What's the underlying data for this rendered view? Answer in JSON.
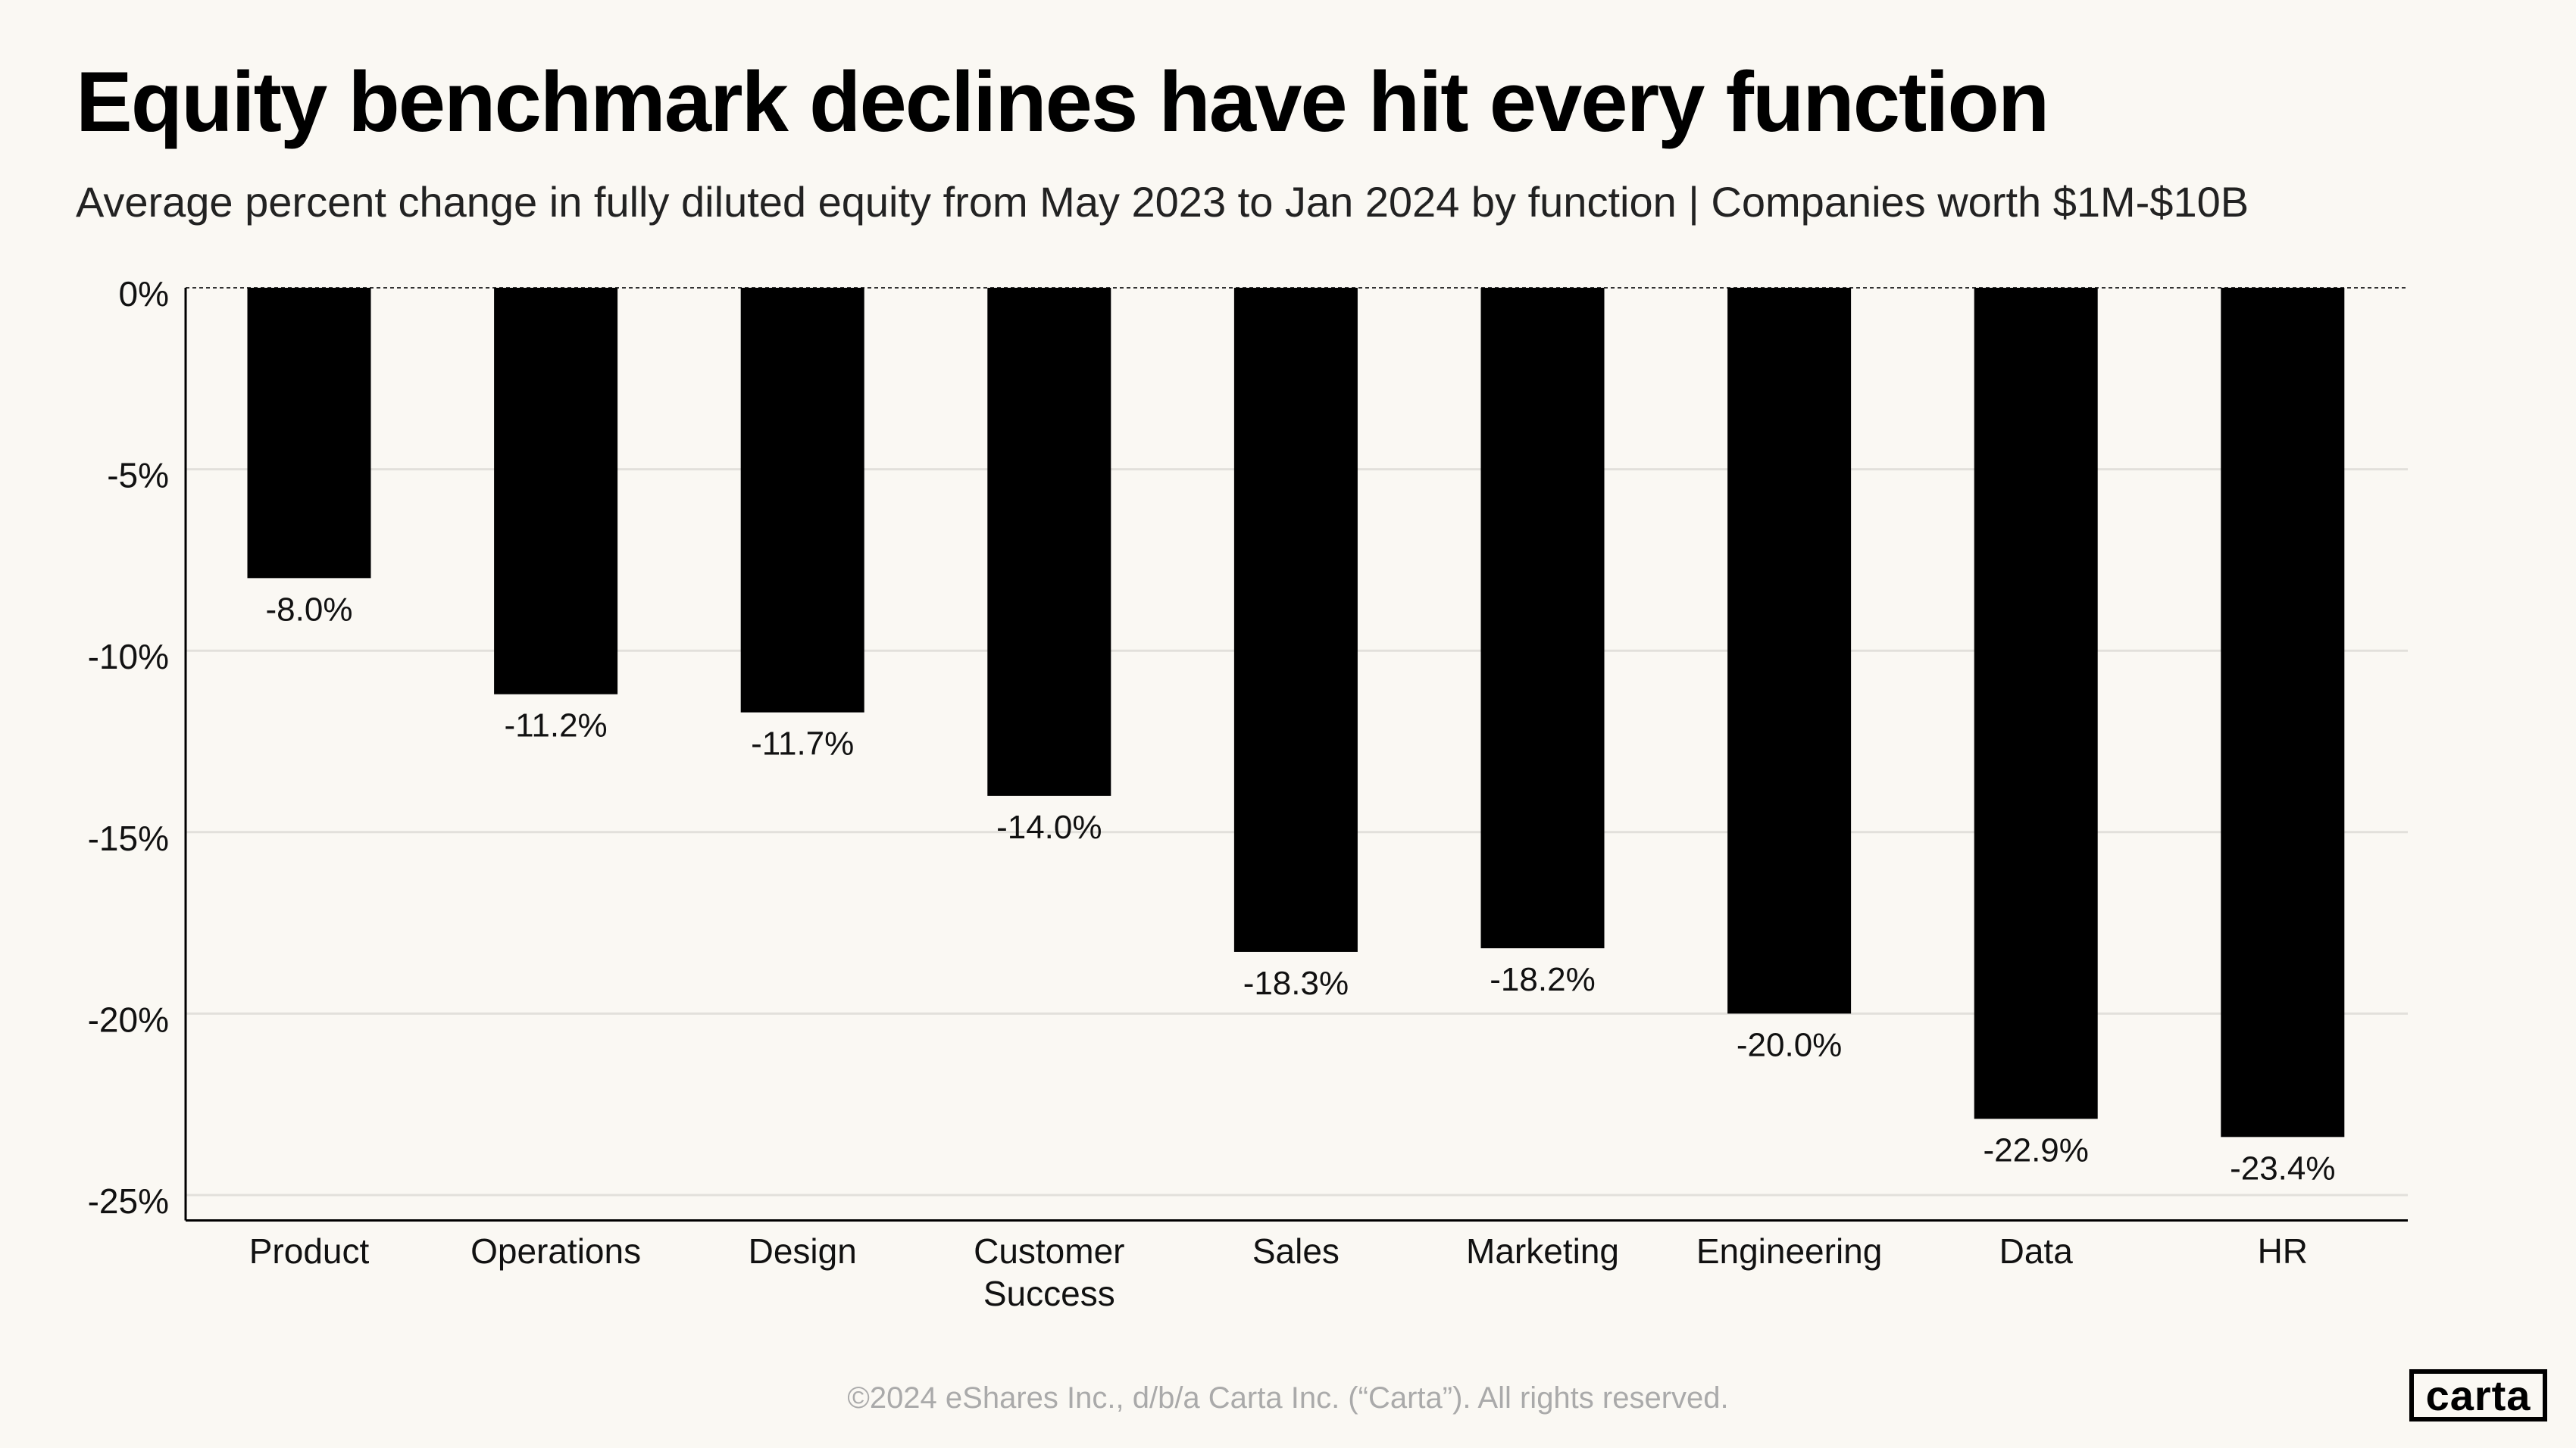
{
  "title": "Equity benchmark declines have hit every function",
  "subtitle": "Average percent change in fully diluted equity from May 2023 to Jan 2024 by function  |  Companies worth $1M-$10B",
  "footer": "©2024 eShares Inc., d/b/a Carta Inc. (“Carta”). All rights reserved.",
  "logo": "carta",
  "colors": {
    "background": "#faf8f3",
    "bar": "#000000",
    "grid": "#e2e0db"
  },
  "chart_data": {
    "type": "bar",
    "title": "Equity benchmark declines have hit every function",
    "categories": [
      "Product",
      "Operations",
      "Design",
      "Customer Success",
      "Sales",
      "Marketing",
      "Engineering",
      "Data",
      "HR"
    ],
    "values": [
      -8.0,
      -11.2,
      -11.7,
      -14.0,
      -18.3,
      -18.2,
      -20.0,
      -22.9,
      -23.4
    ],
    "data_labels": [
      "-8.0%",
      "-11.2%",
      "-11.7%",
      "-14.0%",
      "-18.3%",
      "-18.2%",
      "-20.0%",
      "-22.9%",
      "-23.4%"
    ],
    "yticks": [
      0,
      -5,
      -10,
      -15,
      -20,
      -25
    ],
    "ytick_labels": [
      "0%",
      "-5%",
      "-10%",
      "-15%",
      "-20%",
      "-25%"
    ],
    "ylim": [
      -25.7,
      0
    ],
    "xlabel": "",
    "ylabel": "",
    "grid": true,
    "legend": "none"
  }
}
